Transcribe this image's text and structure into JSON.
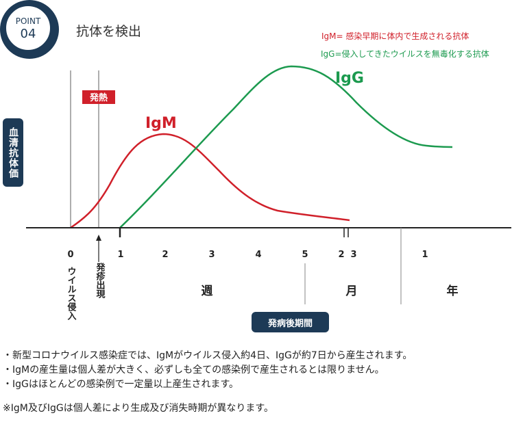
{
  "badge": {
    "label": "POINT",
    "number": "04"
  },
  "title": "抗体を検出",
  "legend": {
    "igm": "IgM= 感染早期に体内で生成される抗体",
    "igg": "IgG=侵入してきたウイルスを無毒化する抗体"
  },
  "colors": {
    "igm": "#d0202a",
    "igg": "#1c9a4f",
    "navy": "#1d3a56",
    "fever": "#d0202a"
  },
  "chart_data": {
    "type": "line",
    "ylabel": "血清抗体価",
    "xlabel": "発病後期間",
    "x_ticks": [
      "0",
      "1",
      "2",
      "3",
      "4",
      "5",
      "2",
      "3",
      "1"
    ],
    "x_unit_labels": [
      "週",
      "月",
      "年"
    ],
    "event_labels": [
      "ウイルス侵入",
      "発疹出現"
    ],
    "fever_label": "発熱",
    "series": [
      {
        "name": "IgM",
        "color": "#d0202a"
      },
      {
        "name": "IgG",
        "color": "#1c9a4f"
      }
    ]
  },
  "notes": [
    "・新型コロナウイルス感染症では、IgMがウイルス侵入約4日、IgGが約7日から産生されます。",
    "・IgMの産生量は個人差が大きく、必ずしも全ての感染例で産生されるとは限りません。",
    "・IgGはほとんどの感染例で一定量以上産生されます。",
    "※IgM及びIgGは個人差により生成及び消失時期が異なります。"
  ]
}
